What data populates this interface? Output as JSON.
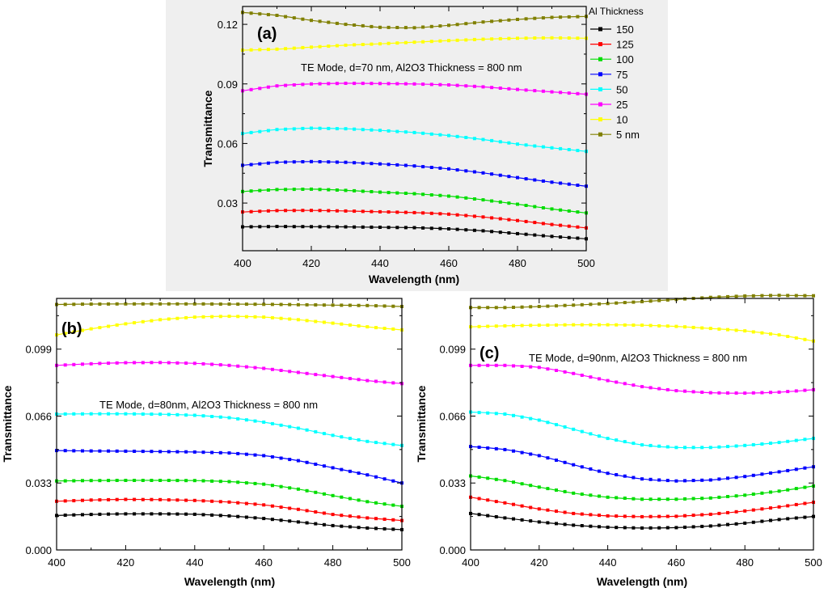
{
  "figure": {
    "legend_title": "Al Thickness",
    "legend_entries": [
      "150",
      "125",
      "100",
      "75",
      "50",
      "25",
      "10",
      "5 nm"
    ]
  },
  "chart_data": [
    {
      "id": "a",
      "type": "line",
      "panel_label": "(a)",
      "annotation": "TE Mode, d=70 nm, Al2O3 Thickness = 800 nm",
      "xlabel": "Wavelength (nm)",
      "ylabel": "Transmittance",
      "xlim": [
        400,
        500
      ],
      "ylim": [
        0.006,
        0.129
      ],
      "xticks": [
        400,
        420,
        440,
        460,
        480,
        500
      ],
      "xtick_labels": [
        "400",
        "420",
        "440",
        "460",
        "480",
        "500"
      ],
      "yticks": [
        0.03,
        0.06,
        0.09,
        0.12
      ],
      "ytick_labels": [
        "0.03",
        "0.06",
        "0.09",
        "0.12"
      ],
      "x": [
        400,
        410,
        420,
        430,
        440,
        450,
        460,
        470,
        480,
        490,
        500
      ],
      "series": [
        {
          "name": "150",
          "color": "#000000",
          "values": [
            0.018,
            0.0182,
            0.0181,
            0.018,
            0.0178,
            0.0176,
            0.017,
            0.016,
            0.0146,
            0.0132,
            0.012
          ]
        },
        {
          "name": "125",
          "color": "#ff0000",
          "values": [
            0.0255,
            0.0262,
            0.0263,
            0.026,
            0.0256,
            0.0252,
            0.0244,
            0.023,
            0.0212,
            0.0192,
            0.0175
          ]
        },
        {
          "name": "100",
          "color": "#00dd00",
          "values": [
            0.0358,
            0.0368,
            0.037,
            0.0364,
            0.0355,
            0.0347,
            0.0335,
            0.0316,
            0.0294,
            0.027,
            0.025
          ]
        },
        {
          "name": "75",
          "color": "#0000ff",
          "values": [
            0.049,
            0.0505,
            0.0509,
            0.0505,
            0.0497,
            0.0487,
            0.0472,
            0.0452,
            0.0428,
            0.0405,
            0.0385
          ]
        },
        {
          "name": "50",
          "color": "#00ffff",
          "values": [
            0.065,
            0.067,
            0.0677,
            0.0674,
            0.0666,
            0.0655,
            0.064,
            0.062,
            0.0597,
            0.0578,
            0.056
          ]
        },
        {
          "name": "25",
          "color": "#ff00ff",
          "values": [
            0.0865,
            0.089,
            0.09,
            0.0903,
            0.0902,
            0.09,
            0.0895,
            0.0885,
            0.0872,
            0.086,
            0.0848
          ]
        },
        {
          "name": "10",
          "color": "#ffff00",
          "values": [
            0.107,
            0.1075,
            0.1085,
            0.1095,
            0.1102,
            0.111,
            0.1118,
            0.1125,
            0.113,
            0.1132,
            0.113
          ]
        },
        {
          "name": "5 nm",
          "color": "#808000",
          "values": [
            0.126,
            0.1245,
            0.122,
            0.12,
            0.1185,
            0.1183,
            0.1195,
            0.1212,
            0.1225,
            0.1235,
            0.124
          ]
        }
      ]
    },
    {
      "id": "b",
      "type": "line",
      "panel_label": "(b)",
      "annotation": "TE Mode, d=80nm, Al2O3  Thickness = 800 nm",
      "xlabel": "Wavelength (nm)",
      "ylabel": "Transmittance",
      "xlim": [
        400,
        500
      ],
      "ylim": [
        0.0,
        0.124
      ],
      "xticks": [
        400,
        420,
        440,
        460,
        480,
        500
      ],
      "xtick_labels": [
        "400",
        "420",
        "440",
        "460",
        "480",
        "500"
      ],
      "yticks": [
        0.0,
        0.033,
        0.066,
        0.099
      ],
      "ytick_labels": [
        "0.000",
        "0.033",
        "0.066",
        "0.099"
      ],
      "x": [
        400,
        410,
        420,
        430,
        440,
        450,
        460,
        470,
        480,
        490,
        500
      ],
      "series": [
        {
          "name": "150",
          "color": "#000000",
          "values": [
            0.017,
            0.0175,
            0.0178,
            0.0178,
            0.0176,
            0.0168,
            0.0155,
            0.0138,
            0.012,
            0.0108,
            0.01
          ]
        },
        {
          "name": "125",
          "color": "#ff0000",
          "values": [
            0.024,
            0.0246,
            0.0249,
            0.0248,
            0.0244,
            0.0236,
            0.0222,
            0.02,
            0.0175,
            0.0158,
            0.0145
          ]
        },
        {
          "name": "100",
          "color": "#00dd00",
          "values": [
            0.034,
            0.0342,
            0.0343,
            0.0343,
            0.0342,
            0.0337,
            0.0324,
            0.03,
            0.0268,
            0.0238,
            0.0215
          ]
        },
        {
          "name": "75",
          "color": "#0000ff",
          "values": [
            0.049,
            0.0488,
            0.0487,
            0.0485,
            0.0483,
            0.0478,
            0.0465,
            0.044,
            0.0405,
            0.037,
            0.033
          ]
        },
        {
          "name": "50",
          "color": "#00ffff",
          "values": [
            0.067,
            0.0671,
            0.0671,
            0.0669,
            0.0664,
            0.0652,
            0.063,
            0.06,
            0.0565,
            0.0535,
            0.0515
          ]
        },
        {
          "name": "25",
          "color": "#ff00ff",
          "values": [
            0.091,
            0.0918,
            0.0923,
            0.0924,
            0.092,
            0.091,
            0.0895,
            0.0875,
            0.0855,
            0.0835,
            0.082
          ]
        },
        {
          "name": "10",
          "color": "#ffff00",
          "values": [
            0.106,
            0.109,
            0.1115,
            0.1135,
            0.1148,
            0.1152,
            0.1148,
            0.1135,
            0.1118,
            0.11,
            0.1085
          ]
        },
        {
          "name": "5 nm",
          "color": "#808000",
          "values": [
            0.121,
            0.1212,
            0.1213,
            0.1213,
            0.1213,
            0.1212,
            0.1211,
            0.1209,
            0.1207,
            0.1205,
            0.12
          ]
        }
      ]
    },
    {
      "id": "c",
      "type": "line",
      "panel_label": "(c)",
      "annotation": "TE Mode, d=90nm, Al2O3  Thickness = 800 nm",
      "xlabel": "Wavelength (nm)",
      "ylabel": "Transmittance",
      "xlim": [
        400,
        500
      ],
      "ylim": [
        0.0,
        0.124
      ],
      "xticks": [
        400,
        420,
        440,
        460,
        480,
        500
      ],
      "xtick_labels": [
        "400",
        "420",
        "440",
        "460",
        "480",
        "500"
      ],
      "yticks": [
        0.0,
        0.033,
        0.066,
        0.099
      ],
      "ytick_labels": [
        "0.000",
        "0.033",
        "0.066",
        "0.099"
      ],
      "x": [
        400,
        410,
        420,
        430,
        440,
        450,
        460,
        470,
        480,
        490,
        500
      ],
      "series": [
        {
          "name": "150",
          "color": "#000000",
          "values": [
            0.018,
            0.0158,
            0.0138,
            0.0122,
            0.0112,
            0.0108,
            0.011,
            0.0118,
            0.0132,
            0.015,
            0.0165
          ]
        },
        {
          "name": "125",
          "color": "#ff0000",
          "values": [
            0.026,
            0.0232,
            0.0202,
            0.018,
            0.0168,
            0.0164,
            0.0166,
            0.0176,
            0.0192,
            0.0212,
            0.0235
          ]
        },
        {
          "name": "100",
          "color": "#00dd00",
          "values": [
            0.0365,
            0.0342,
            0.031,
            0.028,
            0.026,
            0.025,
            0.025,
            0.0256,
            0.027,
            0.029,
            0.0315
          ]
        },
        {
          "name": "75",
          "color": "#0000ff",
          "values": [
            0.051,
            0.0495,
            0.0465,
            0.042,
            0.0378,
            0.035,
            0.034,
            0.0345,
            0.0362,
            0.0385,
            0.041
          ]
        },
        {
          "name": "50",
          "color": "#00ffff",
          "values": [
            0.068,
            0.067,
            0.064,
            0.0595,
            0.055,
            0.0518,
            0.0505,
            0.0505,
            0.0515,
            0.053,
            0.055
          ]
        },
        {
          "name": "25",
          "color": "#ff00ff",
          "values": [
            0.091,
            0.091,
            0.09,
            0.087,
            0.0835,
            0.0805,
            0.0785,
            0.0775,
            0.0773,
            0.0778,
            0.079
          ]
        },
        {
          "name": "10",
          "color": "#ffff00",
          "values": [
            0.11,
            0.1105,
            0.1108,
            0.111,
            0.111,
            0.1108,
            0.1102,
            0.1092,
            0.108,
            0.106,
            0.103
          ]
        },
        {
          "name": "5 nm",
          "color": "#808000",
          "values": [
            0.1195,
            0.1195,
            0.12,
            0.1207,
            0.1215,
            0.1224,
            0.1235,
            0.1245,
            0.1252,
            0.1255,
            0.1253
          ]
        }
      ]
    }
  ]
}
